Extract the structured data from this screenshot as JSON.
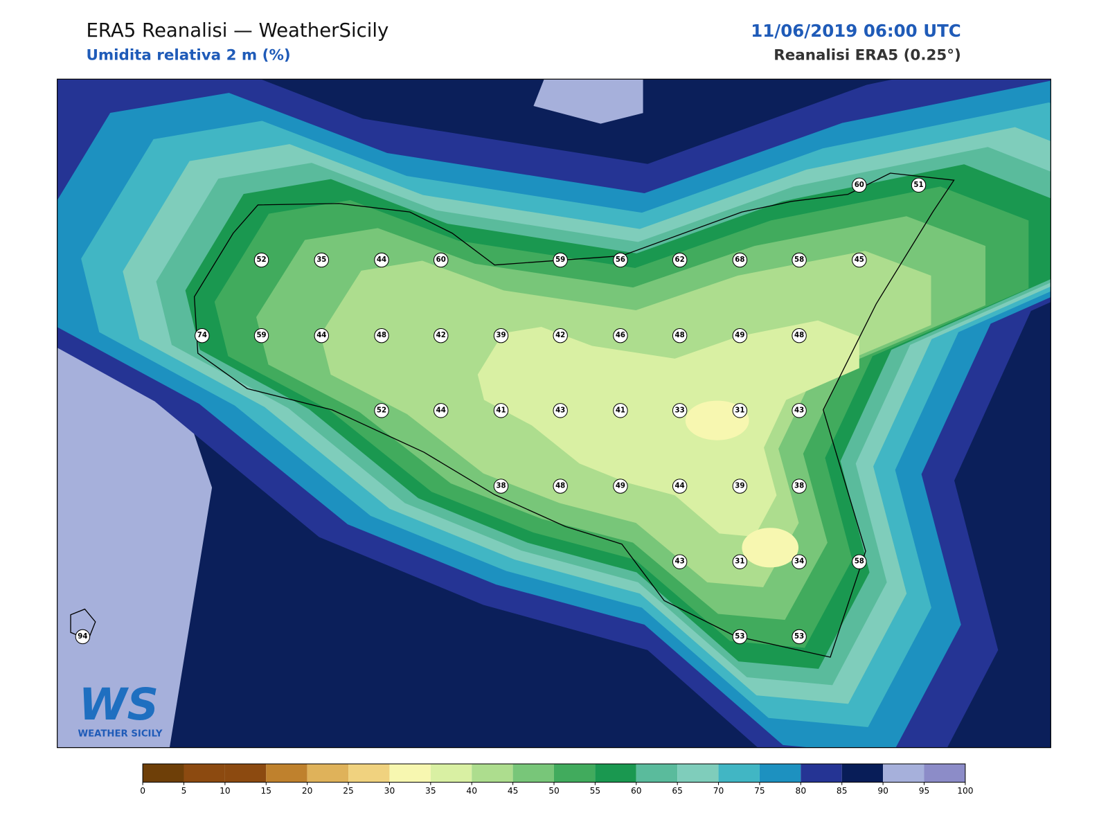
{
  "header": {
    "title": "ERA5 Reanalisi — WeatherSicily",
    "subtitle": "Umidita relativa 2 m (%)",
    "date": "11/06/2019 06:00 UTC",
    "source": "Reanalisi ERA5 (0.25°)"
  },
  "stations": [
    52,
    35,
    44,
    60,
    59,
    56,
    62,
    68,
    58,
    45,
    60,
    51,
    74,
    59,
    44,
    48,
    42,
    39,
    42,
    46,
    48,
    49,
    48,
    52,
    44,
    41,
    43,
    41,
    33,
    31,
    43,
    38,
    48,
    49,
    44,
    39,
    38,
    43,
    31,
    34,
    58,
    53,
    53,
    94
  ],
  "logo": {
    "mark": "WS",
    "name": "WEATHER SICILY"
  },
  "colorbar": {
    "ticks": [
      0,
      5,
      10,
      15,
      20,
      25,
      30,
      35,
      40,
      45,
      50,
      55,
      60,
      65,
      70,
      75,
      80,
      85,
      90,
      95,
      100
    ],
    "colors": [
      "#6e3f08",
      "#8c4a10",
      "#8c4a10",
      "#bf812d",
      "#dfb25a",
      "#f0d27f",
      "#f7f7b0",
      "#d9f0a3",
      "#addd8e",
      "#78c679",
      "#41ab5d",
      "#1a9850",
      "#5abb9c",
      "#7fcdbb",
      "#41b6c4",
      "#1d91c0",
      "#253494",
      "#081d58",
      "#a6b0db",
      "#8c8cc8"
    ]
  }
}
